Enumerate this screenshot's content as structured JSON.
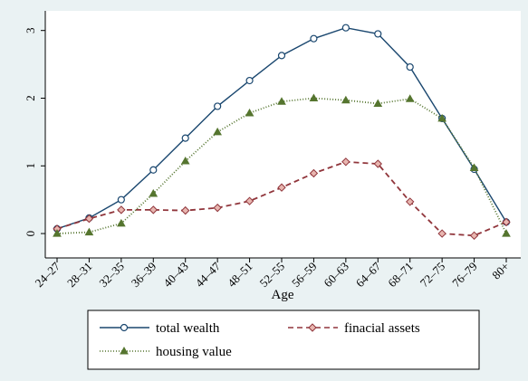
{
  "chart_data": {
    "type": "line",
    "x_label": "Age",
    "categories": [
      "24–27",
      "28–31",
      "32–35",
      "36–39",
      "40–43",
      "44–47",
      "48–51",
      "52–55",
      "56–59",
      "60–63",
      "64–67",
      "68–71",
      "72–75",
      "76–79",
      "80+"
    ],
    "ylim": [
      -0.36,
      3.29
    ],
    "yticks": [
      0,
      1,
      2,
      3
    ],
    "legend": "bottom",
    "series": [
      {
        "name": "total wealth",
        "color": "#1a476f",
        "marker": "circle",
        "dash": "solid",
        "values": [
          0.07,
          0.23,
          0.5,
          0.94,
          1.41,
          1.88,
          2.26,
          2.63,
          2.88,
          3.04,
          2.95,
          2.46,
          1.7,
          0.95,
          0.17
        ]
      },
      {
        "name": "finacial assets",
        "color": "#90353b",
        "marker": "diamond",
        "dash": "dashed",
        "values": [
          0.07,
          0.22,
          0.35,
          0.35,
          0.34,
          0.38,
          0.48,
          0.68,
          0.89,
          1.06,
          1.03,
          0.47,
          0.0,
          -0.03,
          0.17
        ]
      },
      {
        "name": "housing value",
        "color": "#55752f",
        "marker": "triangle",
        "dash": "dotted",
        "values": [
          0.0,
          0.02,
          0.15,
          0.59,
          1.07,
          1.5,
          1.78,
          1.95,
          2.0,
          1.97,
          1.92,
          1.99,
          1.7,
          0.97,
          0.0
        ]
      }
    ]
  }
}
